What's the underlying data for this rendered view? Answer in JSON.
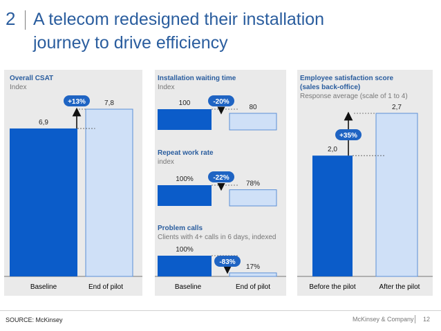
{
  "header": {
    "section_number": "2",
    "title_line1": "A telecom redesigned their installation",
    "title_line2": "journey to drive efficiency"
  },
  "footer": {
    "source": "SOURCE: McKinsey",
    "brand": "McKinsey & Company",
    "page": "12"
  },
  "colors": {
    "title": "#2a5d9e",
    "baseline_bar": "#0b5cc9",
    "pilot_bar": "#cfe0f7",
    "pilot_bar_border": "#5b8fd6",
    "badge": "#1f64c3",
    "panel": "#eaeaea"
  },
  "chart_data": [
    {
      "type": "bar",
      "title": "Overall CSAT",
      "subtitle": "Index",
      "categories": [
        "Baseline",
        "End of pilot"
      ],
      "values": [
        6.9,
        7.8
      ],
      "value_labels": [
        "6,9",
        "7,8"
      ],
      "change_label": "+13%",
      "ylim": [
        0,
        7.8
      ]
    },
    {
      "type": "bar",
      "title": "Installation waiting time",
      "subtitle": "Index",
      "categories": [
        "Baseline",
        "End of pilot"
      ],
      "values": [
        100,
        80
      ],
      "value_labels": [
        "100",
        "80"
      ],
      "change_label": "-20%",
      "ylim": [
        0,
        100
      ]
    },
    {
      "type": "bar",
      "title": "Repeat work rate",
      "subtitle": "index",
      "categories": [
        "Baseline",
        "End of pilot"
      ],
      "values": [
        100,
        78
      ],
      "value_labels": [
        "100%",
        "78%"
      ],
      "change_label": "-22%",
      "ylim": [
        0,
        100
      ]
    },
    {
      "type": "bar",
      "title": "Problem calls",
      "subtitle": "Clients with 4+ calls in 6 days, indexed",
      "categories": [
        "Baseline",
        "End of pilot"
      ],
      "values": [
        100,
        17
      ],
      "value_labels": [
        "100%",
        "17%"
      ],
      "change_label": "-83%",
      "ylim": [
        0,
        100
      ]
    },
    {
      "type": "bar",
      "title": "Employee satisfaction score",
      "title_line2": "(sales back-office)",
      "subtitle": "Response average (scale of 1 to 4)",
      "categories": [
        "Before the pilot",
        "After the pilot"
      ],
      "values": [
        2.0,
        2.7
      ],
      "value_labels": [
        "2,0",
        "2,7"
      ],
      "change_label": "+35%",
      "ylim": [
        0,
        2.7
      ]
    }
  ],
  "x_labels": {
    "left": [
      "Baseline",
      "End of pilot"
    ],
    "middle": [
      "Baseline",
      "End of pilot"
    ],
    "right": [
      "Before the pilot",
      "After the pilot"
    ]
  }
}
